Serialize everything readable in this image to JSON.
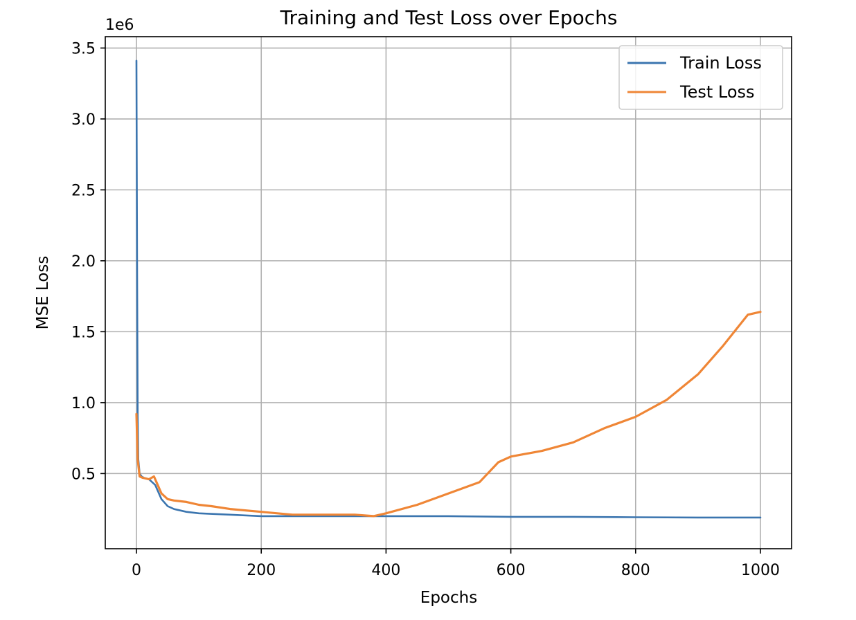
{
  "chart_data": {
    "type": "line",
    "title": "Training and Test Loss over Epochs",
    "xlabel": "Epochs",
    "ylabel": "MSE Loss",
    "offset_text": "1e6",
    "xlim": [
      -50,
      1050
    ],
    "ylim": [
      -0.03,
      3.58
    ],
    "xticks": [
      0,
      200,
      400,
      600,
      800,
      1000
    ],
    "xtick_labels": [
      "0",
      "200",
      "400",
      "600",
      "800",
      "1000"
    ],
    "yticks": [
      0.5,
      1.0,
      1.5,
      2.0,
      2.5,
      3.0,
      3.5
    ],
    "ytick_labels": [
      "0.5",
      "1.0",
      "1.5",
      "2.0",
      "2.5",
      "3.0",
      "3.5"
    ],
    "grid": true,
    "legend_position": "upper-right",
    "series": [
      {
        "name": "Train Loss",
        "color": "#3b75af",
        "x": [
          0,
          1,
          2,
          3,
          5,
          8,
          12,
          20,
          30,
          40,
          50,
          60,
          80,
          100,
          150,
          200,
          300,
          400,
          500,
          600,
          700,
          800,
          900,
          1000
        ],
        "y": [
          3.41,
          2.0,
          0.9,
          0.6,
          0.5,
          0.48,
          0.47,
          0.46,
          0.42,
          0.32,
          0.27,
          0.25,
          0.23,
          0.22,
          0.21,
          0.2,
          0.2,
          0.2,
          0.2,
          0.195,
          0.195,
          0.192,
          0.19,
          0.19
        ]
      },
      {
        "name": "Test Loss",
        "color": "#ef8636",
        "x": [
          0,
          2,
          5,
          10,
          20,
          28,
          32,
          40,
          50,
          60,
          80,
          100,
          120,
          150,
          200,
          250,
          300,
          350,
          380,
          400,
          450,
          500,
          550,
          580,
          600,
          650,
          700,
          750,
          800,
          850,
          900,
          940,
          980,
          1000
        ],
        "y": [
          0.92,
          0.6,
          0.48,
          0.47,
          0.46,
          0.48,
          0.44,
          0.36,
          0.32,
          0.31,
          0.3,
          0.28,
          0.27,
          0.25,
          0.23,
          0.21,
          0.21,
          0.21,
          0.2,
          0.22,
          0.28,
          0.36,
          0.44,
          0.58,
          0.62,
          0.66,
          0.72,
          0.82,
          0.9,
          1.02,
          1.2,
          1.4,
          1.62,
          1.64
        ]
      }
    ]
  }
}
